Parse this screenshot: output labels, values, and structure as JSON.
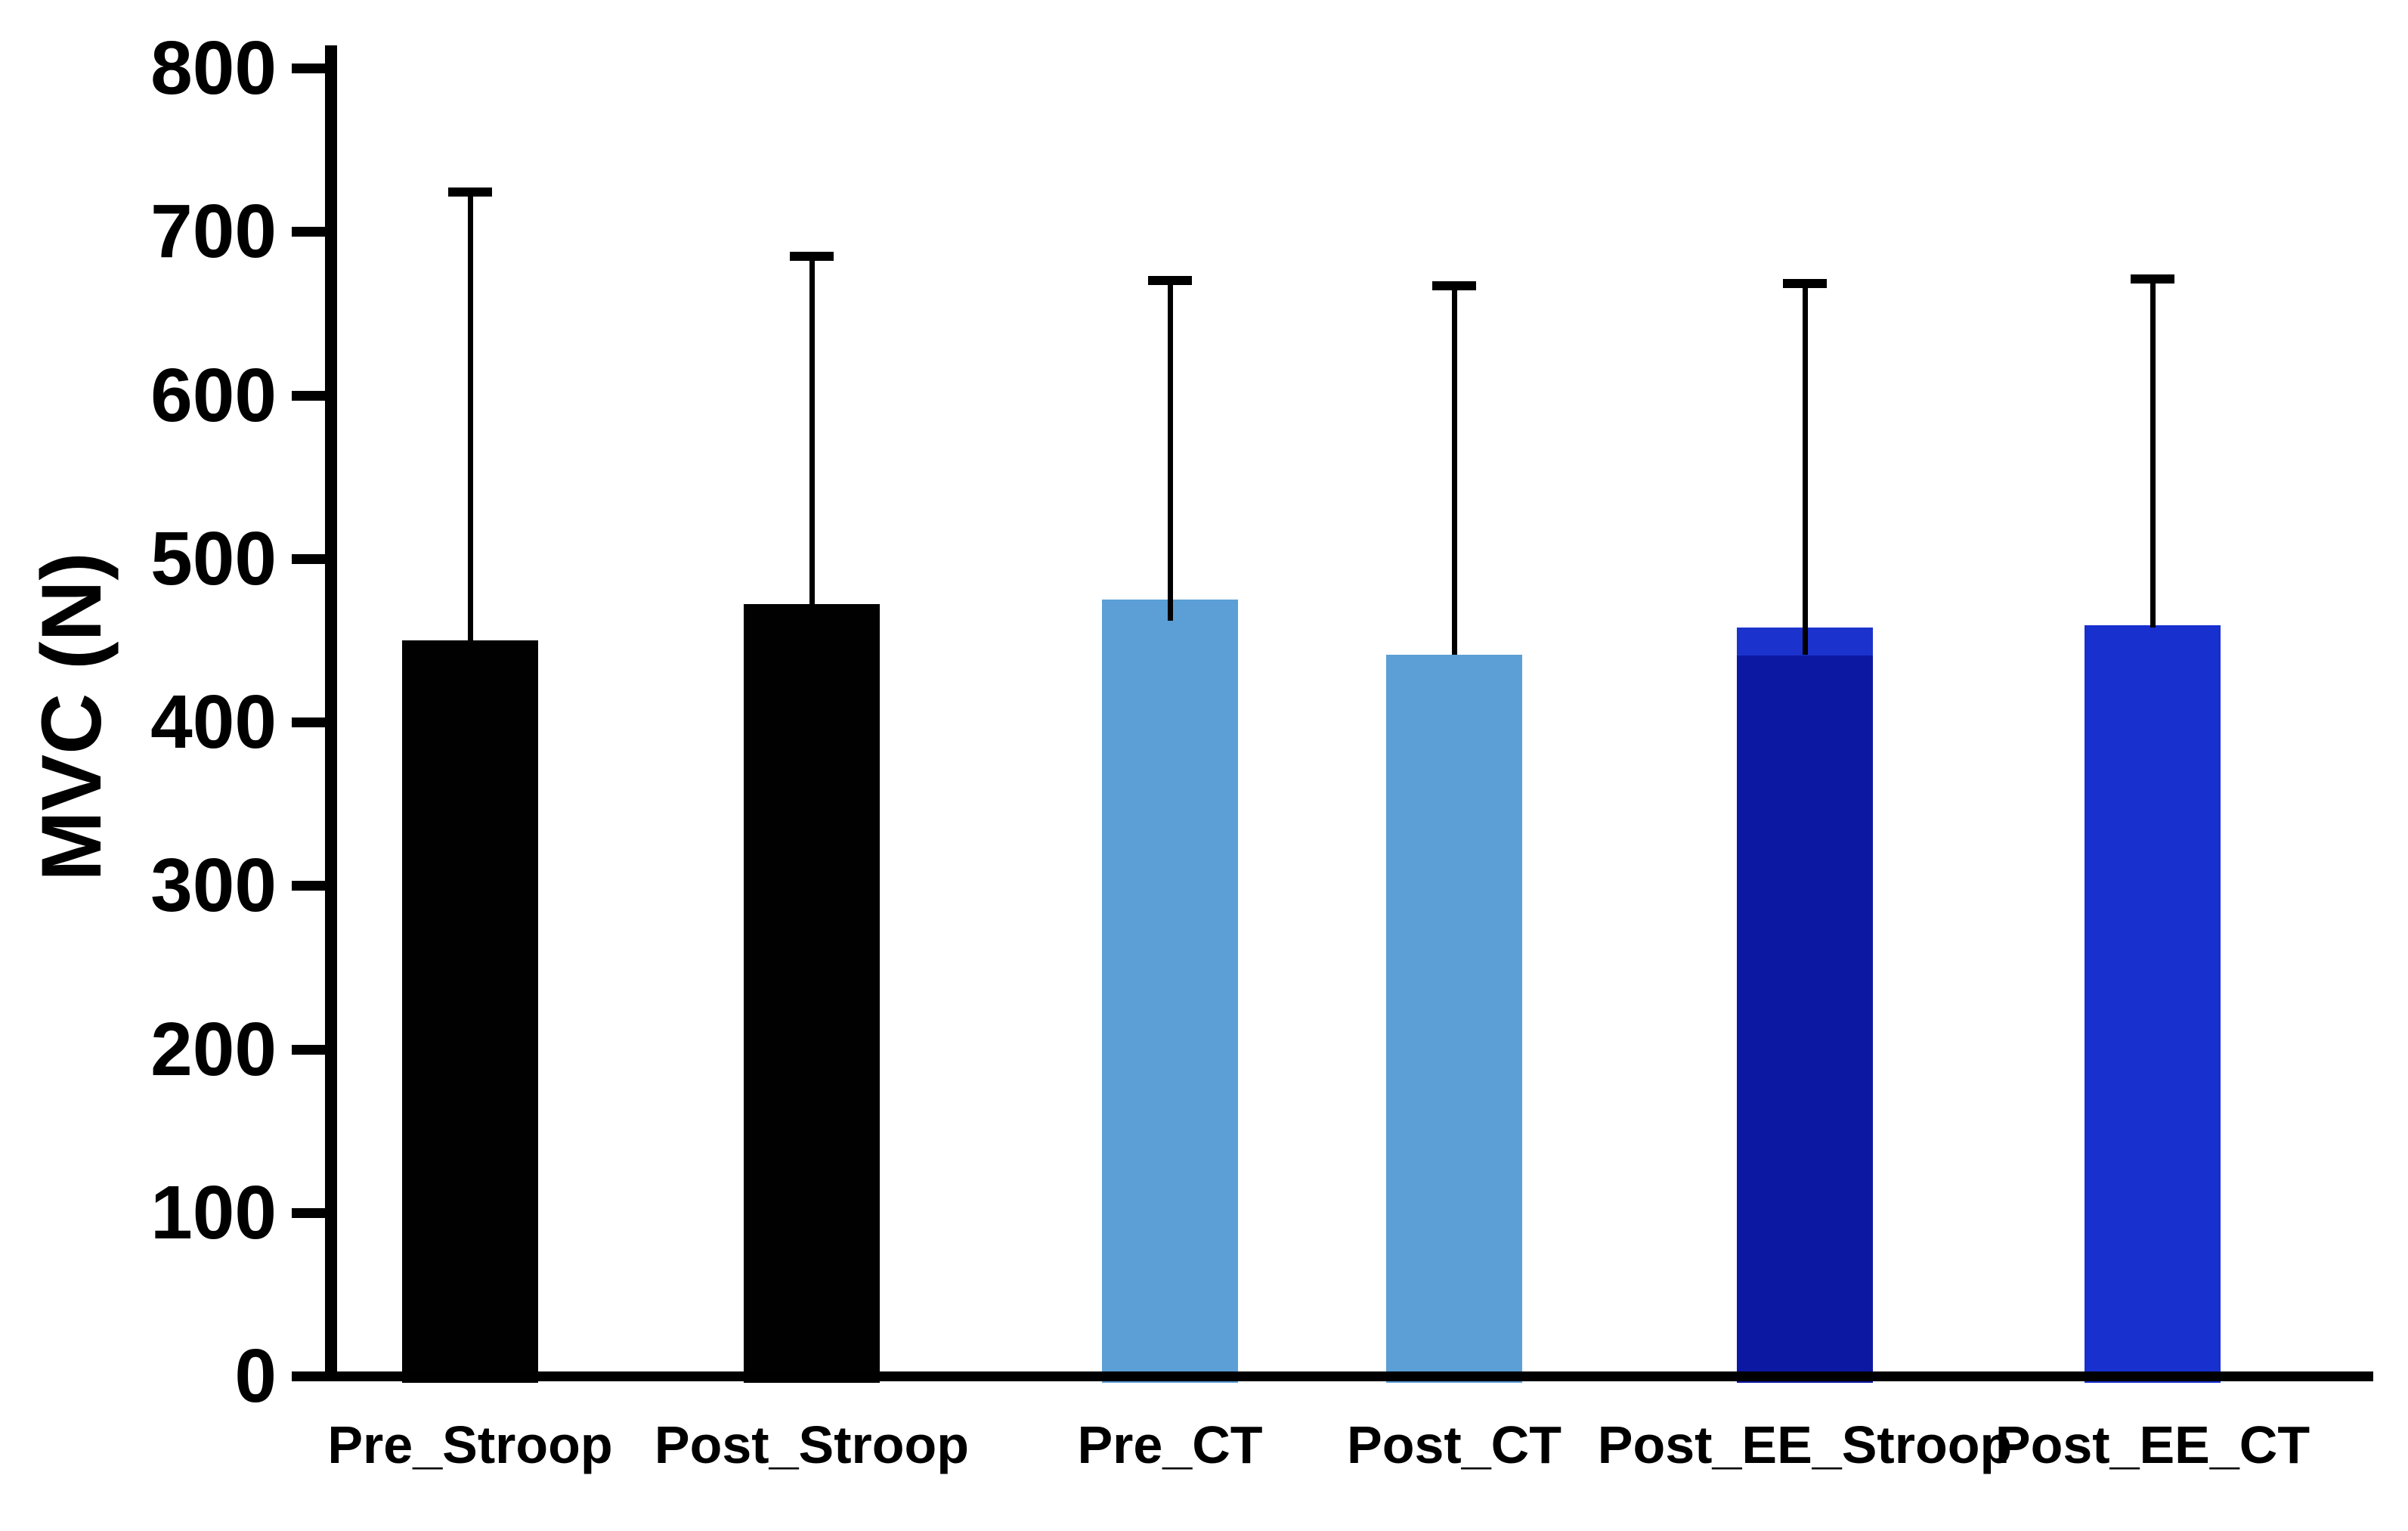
{
  "chart_data": {
    "type": "bar",
    "title": "",
    "xlabel": "",
    "ylabel": "MVC (N)",
    "ylim": [
      0,
      800
    ],
    "yticks": [
      0,
      100,
      200,
      300,
      400,
      500,
      600,
      700,
      800
    ],
    "grid": false,
    "legend": "none",
    "background": "#FFFFFF",
    "axis_color": "#000000",
    "categories": [
      "Pre_Stroop",
      "Post_Stroop",
      "Pre_CT",
      "Post_CT",
      "Post_EE_Stroop",
      "Post_EE_CT"
    ],
    "series": [
      {
        "name": "MVC",
        "values": [
          450,
          472,
          475,
          441,
          458,
          459
        ]
      }
    ],
    "bar_colors": [
      "#010101",
      "#010101",
      "#5B9FD6",
      "#5B9FD6",
      "#101CA6",
      "#1730CE"
    ],
    "error_bars": {
      "direction": "upper",
      "whisker_top_values": [
        724,
        685,
        670,
        667,
        668,
        671
      ],
      "magnitudes": [
        274,
        213,
        195,
        226,
        210,
        212
      ],
      "whisker_visible_end_values": [
        450,
        472,
        462,
        441,
        441,
        458
      ]
    },
    "two_tone_bar": {
      "category": "Post_EE_Stroop",
      "index": 4,
      "top_color": "#1B33CC",
      "top_from_value": 458,
      "top_until_value": 441,
      "body_color": "#0D18A2"
    }
  }
}
